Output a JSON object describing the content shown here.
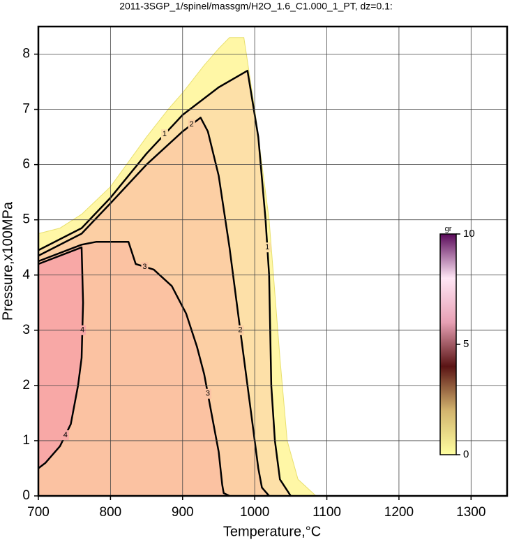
{
  "chart_data": {
    "type": "contour",
    "title": "2011-3SGP_1/spinel/massgm/H2O_1.6_C1.000_1_PT, dz=0.1:",
    "x_label": "Temperature,°C",
    "y_label": "Pressure,x100MPa",
    "xlim": [
      700,
      1350
    ],
    "ylim": [
      0,
      8.5
    ],
    "xticks": [
      700,
      800,
      900,
      1000,
      1100,
      1200,
      1300
    ],
    "yticks": [
      0,
      1,
      2,
      3,
      4,
      5,
      6,
      7,
      8
    ],
    "grid": true,
    "field_extent": {
      "color": "#fff7a6",
      "x": [
        700,
        730,
        760,
        800,
        850,
        880,
        900,
        930,
        950,
        965,
        985,
        1000,
        1020,
        1035,
        1045,
        1060,
        1085
      ],
      "y": [
        4.75,
        4.85,
        5.1,
        5.6,
        6.5,
        7.0,
        7.3,
        7.8,
        8.1,
        8.3,
        8.3,
        7.0,
        5.0,
        2.5,
        1.0,
        0.3,
        0
      ]
    },
    "contours": [
      {
        "level": 1,
        "color": "#fde0a8",
        "x": [
          700,
          760,
          800,
          850,
          900,
          950,
          990,
          1005,
          1015,
          1020,
          1023,
          1028,
          1035,
          1050
        ],
        "y": [
          4.45,
          4.85,
          5.4,
          6.2,
          6.9,
          7.4,
          7.7,
          6.5,
          5.0,
          4.0,
          2.0,
          1.0,
          0.3,
          0
        ]
      },
      {
        "level": 2,
        "color": "#fccfa4",
        "x": [
          700,
          760,
          800,
          850,
          900,
          925,
          935,
          950,
          965,
          975,
          985,
          995,
          1005,
          1010,
          1020
        ],
        "y": [
          4.35,
          4.75,
          5.3,
          6.0,
          6.6,
          6.85,
          6.6,
          5.8,
          4.5,
          3.5,
          2.5,
          1.5,
          0.5,
          0.15,
          0
        ]
      },
      {
        "level": 3,
        "color": "#fbc2a2",
        "x": [
          700,
          760,
          780,
          825,
          835,
          860,
          885,
          905,
          920,
          930,
          940,
          950,
          955,
          957,
          965
        ],
        "y": [
          4.25,
          4.55,
          4.6,
          4.6,
          4.2,
          4.1,
          3.8,
          3.3,
          2.7,
          2.2,
          1.5,
          0.8,
          0.2,
          0.05,
          0
        ]
      },
      {
        "level": 4,
        "color": "#f8a8a6",
        "x": [
          700,
          760,
          762,
          760,
          755,
          745,
          730,
          710,
          700
        ],
        "y": [
          4.2,
          4.5,
          3.5,
          2.5,
          2.0,
          1.3,
          0.9,
          0.6,
          0.5
        ]
      }
    ],
    "colorbar": {
      "label": "gr",
      "lim": [
        0,
        10
      ],
      "ticks": [
        0,
        5,
        10
      ],
      "colors": [
        "#ffffa0",
        "#d2b46e",
        "#5a1414",
        "#e7a0b4",
        "#ffe6f5",
        "#5a0a5a"
      ]
    }
  }
}
